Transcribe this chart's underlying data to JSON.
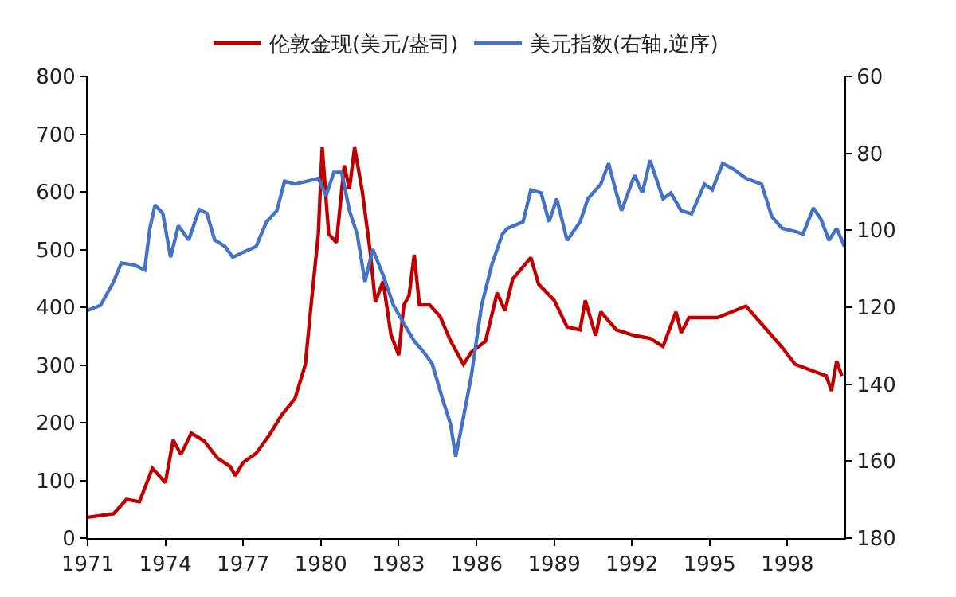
{
  "chart_data": {
    "type": "line",
    "legend": "top",
    "marker": "none",
    "line_style": "solid",
    "xlim": [
      1971,
      2000.2
    ],
    "xticks": [
      1971,
      1974,
      1977,
      1980,
      1983,
      1986,
      1989,
      1992,
      1995,
      1998
    ],
    "ylim": [
      0,
      800
    ],
    "yticks": [
      0,
      100,
      200,
      300,
      400,
      500,
      600,
      700,
      800
    ],
    "y2lim": [
      180,
      60
    ],
    "y2ticks": [
      60,
      80,
      100,
      120,
      140,
      160,
      180
    ],
    "series": [
      {
        "name": "伦敦金现(美元/盎司)",
        "color": "#c00000",
        "x": [
          1971,
          1972,
          1972.5,
          1973,
          1973.5,
          1974,
          1974.3,
          1974.6,
          1975,
          1975.5,
          1976,
          1976.5,
          1976.7,
          1977,
          1977.5,
          1978,
          1978.5,
          1979,
          1979.4,
          1979.6,
          1979.9,
          1980.05,
          1980.3,
          1980.6,
          1980.9,
          1981.1,
          1981.3,
          1981.6,
          1981.9,
          1982.1,
          1982.4,
          1982.7,
          1983,
          1983.2,
          1983.4,
          1983.6,
          1983.8,
          1984.2,
          1984.6,
          1985,
          1985.5,
          1985.8,
          1986.35,
          1986.8,
          1987.1,
          1987.4,
          1988.1,
          1988.4,
          1989.0,
          1989.5,
          1990.0,
          1990.2,
          1990.6,
          1990.8,
          1991.4,
          1992.1,
          1992.7,
          1993.2,
          1993.7,
          1993.9,
          1994.2,
          1995.3,
          1996.4,
          1997.2,
          1997.8,
          1998.3,
          1998.9,
          1999.5,
          1999.7,
          1999.9,
          2000.1
        ],
        "values": [
          36,
          42,
          67,
          63,
          121,
          96,
          170,
          145,
          182,
          168,
          139,
          124,
          108,
          131,
          147,
          178,
          214,
          242,
          301,
          394,
          527,
          677,
          527,
          512,
          646,
          605,
          677,
          600,
          497,
          409,
          445,
          353,
          317,
          404,
          420,
          491,
          404,
          404,
          384,
          342,
          301,
          322,
          341,
          425,
          394,
          449,
          486,
          440,
          412,
          366,
          361,
          412,
          351,
          392,
          361,
          351,
          346,
          332,
          392,
          356,
          382,
          382,
          402,
          361,
          330,
          301,
          291,
          281,
          255,
          307,
          281
        ]
      },
      {
        "name": "美元指数(右轴,逆序)",
        "color": "#4472c4",
        "axis": "y2",
        "x": [
          1971,
          1971.5,
          1972,
          1972.3,
          1972.8,
          1973.2,
          1973.4,
          1973.6,
          1973.9,
          1974.2,
          1974.5,
          1974.9,
          1975.3,
          1975.6,
          1975.9,
          1976.3,
          1976.6,
          1977,
          1977.5,
          1977.9,
          1978.3,
          1978.6,
          1979,
          1979.5,
          1979.9,
          1980.2,
          1980.5,
          1980.8,
          1981.1,
          1981.4,
          1981.7,
          1982,
          1982.4,
          1982.8,
          1983.2,
          1983.6,
          1984,
          1984.3,
          1984.7,
          1985,
          1985.2,
          1985.5,
          1985.8,
          1986.2,
          1986.6,
          1987.0,
          1987.2,
          1987.8,
          1988.1,
          1988.5,
          1988.8,
          1989.1,
          1989.5,
          1990.0,
          1990.3,
          1990.8,
          1991.1,
          1991.4,
          1991.6,
          1992.1,
          1992.4,
          1992.7,
          1993.2,
          1993.5,
          1993.9,
          1994.3,
          1994.8,
          1995.1,
          1995.5,
          1995.9,
          1996.4,
          1997.0,
          1997.4,
          1997.8,
          1998.3,
          1998.6,
          1999.0,
          1999.3,
          1999.6,
          1999.9,
          2000.2
        ],
        "values": [
          120.8,
          119.5,
          113.4,
          108.5,
          109,
          110.3,
          99.5,
          93.4,
          95.6,
          107,
          98.8,
          102.5,
          94.6,
          95.6,
          102.5,
          104.2,
          107,
          105.7,
          104.2,
          97.8,
          94.9,
          87.2,
          88,
          87.2,
          86.5,
          91,
          84.9,
          84.9,
          94.9,
          101,
          113.4,
          104.9,
          111.7,
          119.5,
          124.2,
          128.8,
          131.9,
          134.8,
          144,
          150.3,
          158.8,
          148.6,
          138,
          119.5,
          108.8,
          101,
          99.5,
          97.8,
          89.5,
          90.3,
          97.8,
          91.8,
          102.6,
          97.8,
          91.8,
          88,
          82.6,
          90.3,
          94.9,
          85.7,
          90.3,
          81.8,
          91.8,
          90.3,
          94.9,
          95.7,
          88,
          89.5,
          82.6,
          84,
          86.5,
          88,
          96.5,
          99.5,
          100.3,
          101,
          94.2,
          97.2,
          102.6,
          99.5,
          104.2
        ]
      }
    ]
  }
}
